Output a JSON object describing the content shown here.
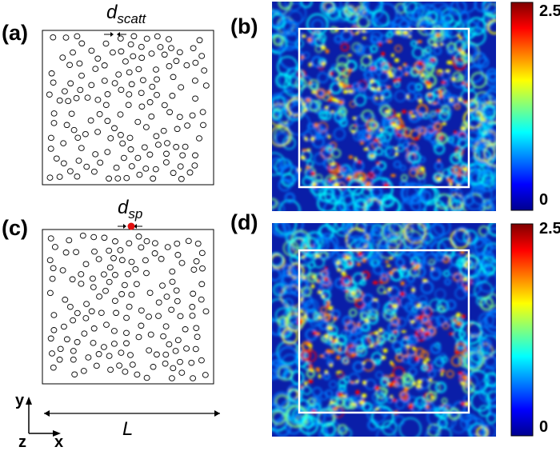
{
  "panels": {
    "a": {
      "letter": "(a)",
      "dim_main": "d",
      "dim_sub": "scatt"
    },
    "b": {
      "letter": "(b)"
    },
    "c": {
      "letter": "(c)",
      "dim_main": "d",
      "dim_sub": "sp"
    },
    "d": {
      "letter": "(d)"
    }
  },
  "colorbar_top": {
    "max_label": "2.5",
    "min_label": "0"
  },
  "colorbar_bottom": {
    "max_label": "2.5",
    "min_label": "0"
  },
  "axes": {
    "y": "y",
    "x": "x",
    "z": "z",
    "length": "L"
  },
  "colors": {
    "jet": [
      "#00008f",
      "#0000ff",
      "#007fff",
      "#00ffff",
      "#7fff7f",
      "#ffff00",
      "#ff7f00",
      "#ff0000",
      "#7f0000"
    ],
    "source_dot": "#e01010",
    "field_bg": "#0a1ea8"
  }
}
